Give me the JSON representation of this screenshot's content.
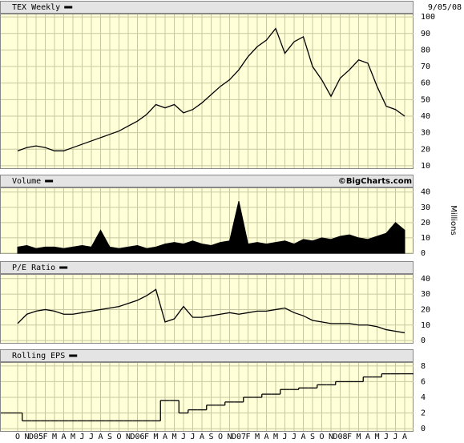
{
  "chart_data": [
    {
      "type": "line",
      "title": "TEX Weekly",
      "annotation": "9/05/08",
      "color": "#000000",
      "values": [
        19,
        21,
        22,
        21,
        19,
        19,
        21,
        23,
        25,
        27,
        29,
        31,
        34,
        37,
        41,
        47,
        45,
        47,
        42,
        44,
        48,
        53,
        58,
        62,
        68,
        76,
        82,
        86,
        93,
        78,
        85,
        88,
        70,
        62,
        52,
        63,
        68,
        74,
        72,
        58,
        46,
        44,
        40
      ],
      "ylim": [
        8.5,
        102
      ],
      "yticks": [
        10,
        20,
        30,
        40,
        50,
        60,
        70,
        80,
        90,
        100
      ],
      "grid": true
    },
    {
      "type": "area",
      "title": "Volume",
      "annotation": "©BigCharts.com",
      "ylabel": "Millions",
      "color": "#000000",
      "values": [
        4,
        5,
        3,
        4,
        4,
        3,
        4,
        5,
        4,
        15,
        4,
        3,
        4,
        5,
        3,
        4,
        6,
        7,
        6,
        8,
        6,
        5,
        7,
        8,
        34,
        6,
        7,
        6,
        7,
        8,
        6,
        9,
        8,
        10,
        9,
        11,
        12,
        10,
        9,
        11,
        13,
        20,
        15
      ],
      "ylim": [
        0,
        43
      ],
      "yticks": [
        0,
        10,
        20,
        30,
        40
      ],
      "grid": true
    },
    {
      "type": "line",
      "title": "P/E Ratio",
      "color": "#000000",
      "values": [
        11,
        17,
        19,
        20,
        19,
        17,
        17,
        18,
        19,
        20,
        21,
        22,
        24,
        26,
        29,
        33,
        12,
        14,
        22,
        15,
        15,
        16,
        17,
        18,
        17,
        18,
        19,
        19,
        20,
        21,
        18,
        16,
        13,
        12,
        11,
        11,
        11,
        10,
        10,
        9,
        7,
        6,
        5
      ],
      "ylim": [
        -1.5,
        43
      ],
      "yticks": [
        0,
        10,
        20,
        30,
        40
      ],
      "grid": true
    },
    {
      "type": "step",
      "title": "Rolling EPS",
      "color": "#000000",
      "categories": [
        "O",
        "N",
        "D05",
        "F",
        "M",
        "A",
        "M",
        "J",
        "J",
        "A",
        "S",
        "O",
        "N",
        "D06",
        "F",
        "M",
        "A",
        "M",
        "J",
        "J",
        "A",
        "S",
        "O",
        "N",
        "D07",
        "F",
        "M",
        "A",
        "M",
        "J",
        "J",
        "A",
        "S",
        "O",
        "N",
        "D08",
        "F",
        "M",
        "A",
        "M",
        "J",
        "J",
        "A"
      ],
      "values": [
        2,
        1,
        1,
        1,
        1,
        1,
        1,
        1,
        1,
        1,
        1,
        1,
        1,
        1,
        1,
        1,
        3.6,
        3.6,
        2,
        2.4,
        2.4,
        3,
        3,
        3.4,
        3.4,
        4,
        4,
        4.4,
        4.4,
        5,
        5,
        5.2,
        5.2,
        5.6,
        5.6,
        6,
        6,
        6,
        6.6,
        6.6,
        7,
        7,
        7
      ],
      "ylim": [
        -0.3,
        8.5
      ],
      "yticks": [
        0,
        2,
        4,
        6,
        8
      ],
      "grid": true
    }
  ]
}
